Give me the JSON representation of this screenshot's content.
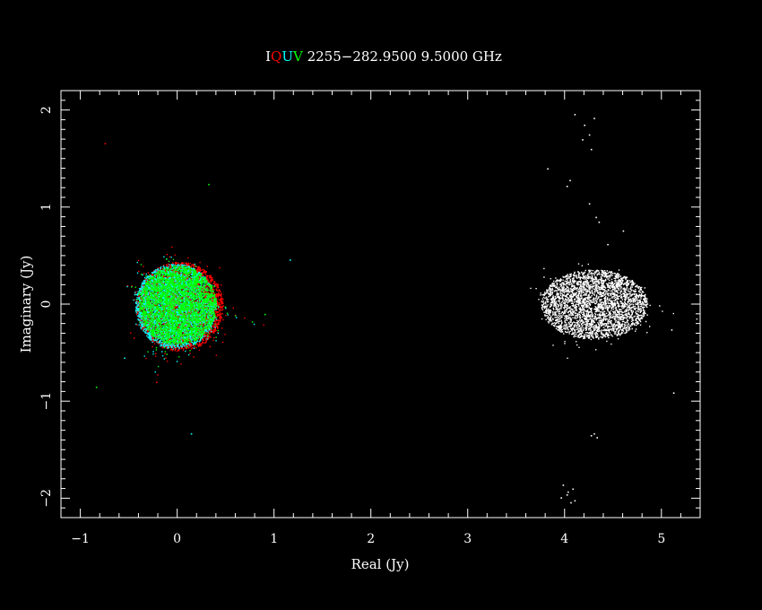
{
  "chart_data": {
    "type": "scatter",
    "title_prefix_letters": [
      {
        "text": "I",
        "color": "#ffffff"
      },
      {
        "text": "Q",
        "color": "#ff0000"
      },
      {
        "text": "U",
        "color": "#00ffff"
      },
      {
        "text": "V",
        "color": "#00ff00"
      }
    ],
    "title_rest": " 2255−282.9500 9.5000 GHz",
    "xlabel": "Real (Jy)",
    "ylabel": "Imaginary (Jy)",
    "xlim": [
      -1.2,
      5.4
    ],
    "ylim": [
      -2.2,
      2.2
    ],
    "xticks": [
      -1,
      0,
      1,
      2,
      3,
      4,
      5
    ],
    "yticks": [
      -2,
      -1,
      0,
      1,
      2
    ],
    "xtick_labels": [
      "−1",
      "0",
      "1",
      "2",
      "3",
      "4",
      "5"
    ],
    "ytick_labels": [
      "−2",
      "−1",
      "0",
      "1",
      "2"
    ],
    "series": [
      {
        "color": "#ff0000",
        "cluster": {
          "cx": 0.02,
          "cy": -0.02,
          "rx": 0.45,
          "ry": 0.46
        }
      },
      {
        "color": "#00ffff",
        "cluster": {
          "cx": -0.02,
          "cy": -0.02,
          "rx": 0.42,
          "ry": 0.44
        }
      },
      {
        "color": "#00ff00",
        "cluster": {
          "cx": 0.0,
          "cy": -0.01,
          "rx": 0.4,
          "ry": 0.41
        }
      },
      {
        "color": "#ffffff",
        "cluster": {
          "cx": 4.3,
          "cy": 0.0,
          "rx": 0.55,
          "ry": 0.36
        }
      }
    ],
    "outliers": [
      {
        "x": -0.75,
        "y": 1.66,
        "color": "#ff0000"
      },
      {
        "x": 0.32,
        "y": 1.24,
        "color": "#00ff00"
      },
      {
        "x": 1.16,
        "y": 0.46,
        "color": "#00ffff"
      },
      {
        "x": -0.84,
        "y": -0.85,
        "color": "#00ff00"
      },
      {
        "x": 0.14,
        "y": -1.33,
        "color": "#00ffff"
      },
      {
        "x": 0.9,
        "y": -0.1,
        "color": "#00ff00"
      },
      {
        "x": -0.55,
        "y": -0.55,
        "color": "#00ffff"
      },
      {
        "x": -0.22,
        "y": -0.8,
        "color": "#ff0000"
      },
      {
        "x": 4.1,
        "y": 1.96,
        "color": "#ffffff"
      },
      {
        "x": 4.2,
        "y": 1.85,
        "color": "#ffffff"
      },
      {
        "x": 4.25,
        "y": 1.75,
        "color": "#ffffff"
      },
      {
        "x": 4.3,
        "y": 1.92,
        "color": "#ffffff"
      },
      {
        "x": 4.18,
        "y": 1.7,
        "color": "#ffffff"
      },
      {
        "x": 4.27,
        "y": 1.6,
        "color": "#ffffff"
      },
      {
        "x": 3.82,
        "y": 1.4,
        "color": "#ffffff"
      },
      {
        "x": 4.05,
        "y": 1.28,
        "color": "#ffffff"
      },
      {
        "x": 4.02,
        "y": 1.22,
        "color": "#ffffff"
      },
      {
        "x": 4.25,
        "y": 1.04,
        "color": "#ffffff"
      },
      {
        "x": 4.32,
        "y": 0.9,
        "color": "#ffffff"
      },
      {
        "x": 4.35,
        "y": 0.85,
        "color": "#ffffff"
      },
      {
        "x": 4.6,
        "y": 0.76,
        "color": "#ffffff"
      },
      {
        "x": 4.44,
        "y": 0.62,
        "color": "#ffffff"
      },
      {
        "x": 5.1,
        "y": -0.26,
        "color": "#ffffff"
      },
      {
        "x": 5.12,
        "y": -0.91,
        "color": "#ffffff"
      },
      {
        "x": 4.27,
        "y": -1.35,
        "color": "#ffffff"
      },
      {
        "x": 4.33,
        "y": -1.37,
        "color": "#ffffff"
      },
      {
        "x": 4.3,
        "y": -1.33,
        "color": "#ffffff"
      },
      {
        "x": 3.98,
        "y": -1.86,
        "color": "#ffffff"
      },
      {
        "x": 4.03,
        "y": -1.93,
        "color": "#ffffff"
      },
      {
        "x": 4.08,
        "y": -1.9,
        "color": "#ffffff"
      },
      {
        "x": 3.96,
        "y": -1.99,
        "color": "#ffffff"
      },
      {
        "x": 4.1,
        "y": -2.02,
        "color": "#ffffff"
      },
      {
        "x": 4.02,
        "y": -1.96,
        "color": "#ffffff"
      },
      {
        "x": 4.06,
        "y": -2.04,
        "color": "#ffffff"
      }
    ],
    "grid": false,
    "legend": "none"
  }
}
